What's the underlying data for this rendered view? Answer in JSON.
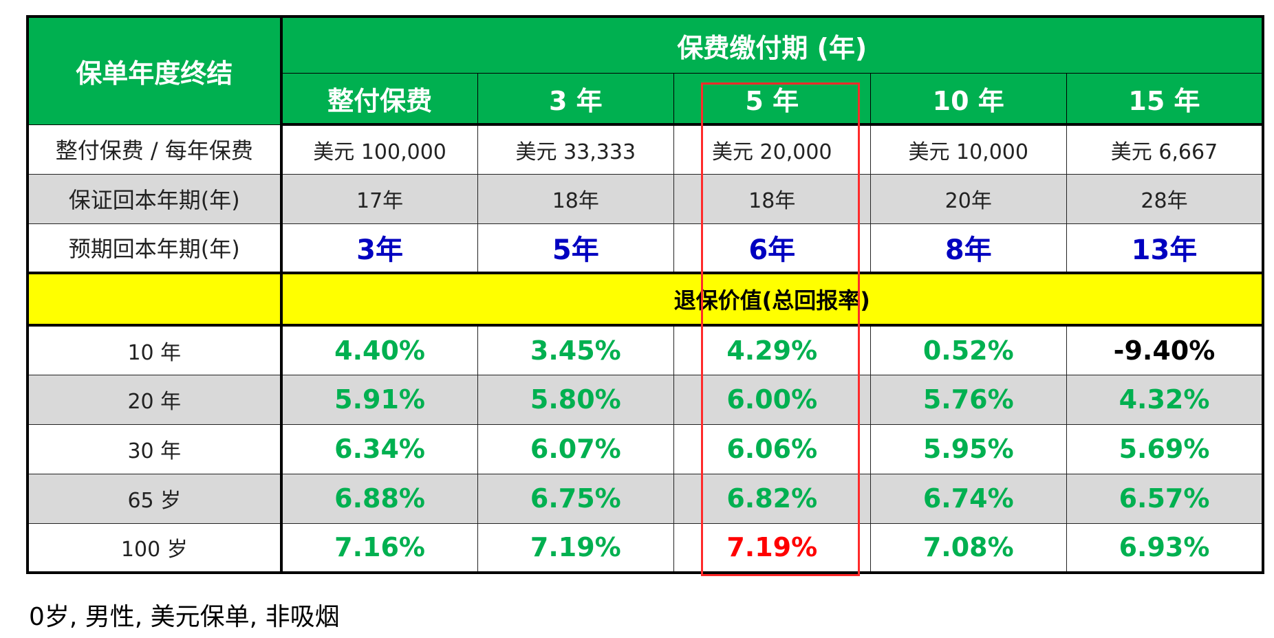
{
  "table": {
    "corner_label": "保单年度终结",
    "payment_period_title": "保费缴付期 (年)",
    "columns": [
      "整付保费",
      "3 年",
      "5 年",
      "10 年",
      "15 年"
    ],
    "premium_row": {
      "label": "整付保费 / 每年保费",
      "values": [
        "美元 100,000",
        "美元 33,333",
        "美元 20,000",
        "美元 10,000",
        "美元 6,667"
      ]
    },
    "guaranteed_row": {
      "label": "保证回本年期(年)",
      "values": [
        "17年",
        "18年",
        "18年",
        "20年",
        "28年"
      ]
    },
    "expected_row": {
      "label": "预期回本年期(年)",
      "values": [
        "3年",
        "5年",
        "6年",
        "8年",
        "13年"
      ]
    },
    "surrender_title": "退保价值(总回报率)",
    "surrender_rows": [
      {
        "label": "10 年",
        "values": [
          "4.40%",
          "3.45%",
          "4.29%",
          "0.52%",
          "-9.40%"
        ]
      },
      {
        "label": "20 年",
        "values": [
          "5.91%",
          "5.80%",
          "6.00%",
          "5.76%",
          "4.32%"
        ]
      },
      {
        "label": "30 年",
        "values": [
          "6.34%",
          "6.07%",
          "6.06%",
          "5.95%",
          "5.69%"
        ]
      },
      {
        "label": "65 岁",
        "values": [
          "6.88%",
          "6.75%",
          "6.82%",
          "6.74%",
          "6.57%"
        ]
      },
      {
        "label": "100 岁",
        "values": [
          "7.16%",
          "7.19%",
          "7.19%",
          "7.08%",
          "6.93%"
        ]
      }
    ]
  },
  "footnote": "0岁, 男性, 美元保单, 非吸烟",
  "colors": {
    "header_green": "#00b050",
    "banner_yellow": "#ffff00",
    "expected_blue": "#0000c0",
    "highlight_red": "#ff0000"
  }
}
